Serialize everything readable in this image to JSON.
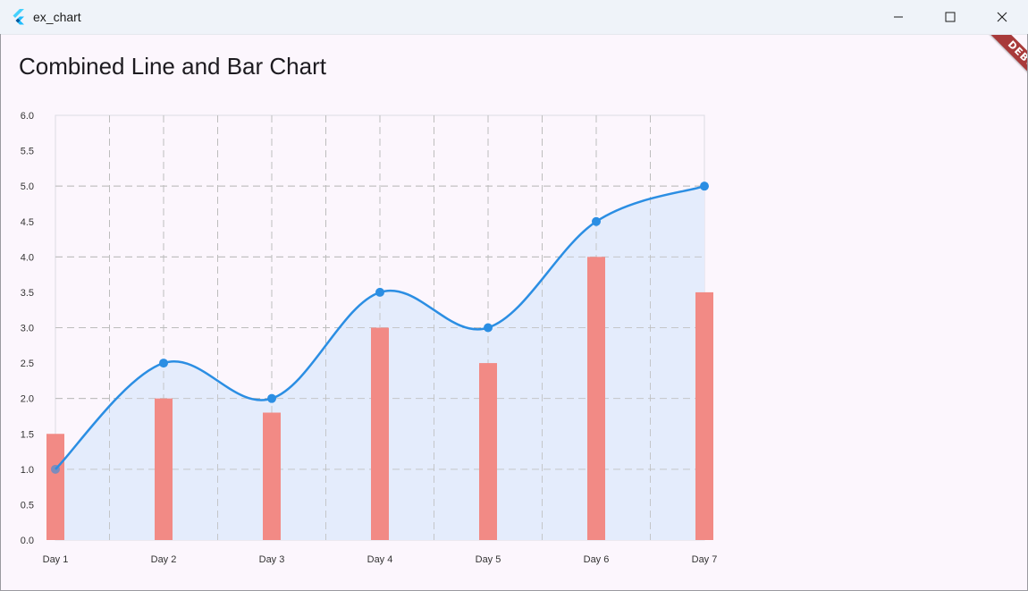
{
  "window": {
    "title": "ex_chart",
    "icon": "flutter-logo-icon",
    "controls": [
      "minimize-icon",
      "maximize-icon",
      "close-icon"
    ]
  },
  "page": {
    "title": "Combined Line and Bar Chart",
    "debug_banner": "DEBUG"
  },
  "colors": {
    "line": "#2b8ee3",
    "area": "#e3ebfc",
    "bar": "#f28a85",
    "grid": "#bdbdbd",
    "debug": "#a83a3a"
  },
  "chart_data": {
    "type": "bar+line",
    "categories": [
      "Day 1",
      "Day 2",
      "Day 3",
      "Day 4",
      "Day 5",
      "Day 6",
      "Day 7"
    ],
    "series": [
      {
        "type": "bar",
        "values": [
          1.5,
          2.0,
          1.8,
          3.0,
          2.5,
          4.0,
          3.5
        ]
      },
      {
        "type": "line",
        "values": [
          1.0,
          2.5,
          2.0,
          3.5,
          3.0,
          4.5,
          5.0
        ]
      }
    ],
    "y_ticks": [
      "0.0",
      "0.5",
      "1.0",
      "1.5",
      "2.0",
      "2.5",
      "3.0",
      "3.5",
      "4.0",
      "4.5",
      "5.0",
      "5.5",
      "6.0"
    ],
    "ylim": [
      0,
      6
    ],
    "grid": true,
    "line_fill": true,
    "line_curved": true
  }
}
